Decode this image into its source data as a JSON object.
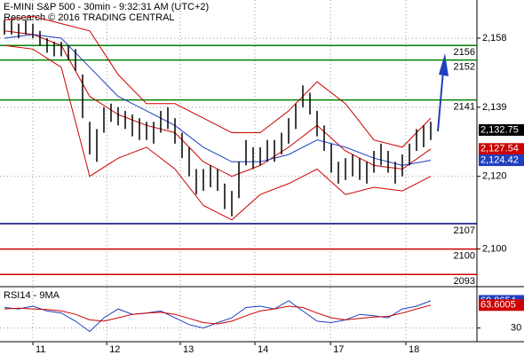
{
  "chart_data": {
    "type": "ohlc",
    "title": "E-MINI S&P 500 - 30min - 9:32:31 AM (UTC+2)",
    "subtitle": "Research © 2016 TRADING CENTRAL",
    "xlim": [
      -0.625,
      66.5
    ],
    "xticks": [
      {
        "value": 4,
        "label": "11"
      },
      {
        "value": 14.4,
        "label": "12"
      },
      {
        "value": 24.75,
        "label": "13"
      },
      {
        "value": 35.25,
        "label": "14"
      },
      {
        "value": 45.9,
        "label": "17"
      },
      {
        "value": 56.5,
        "label": "18"
      }
    ],
    "ylim": [
      2089.9,
      2168.5
    ],
    "yticks": [
      {
        "value": 2158,
        "label": "2,158"
      },
      {
        "value": 2139,
        "label": "2,139"
      },
      {
        "value": 2120,
        "label": "2,120"
      },
      {
        "value": 2100,
        "label": "2,100"
      }
    ],
    "grid": true,
    "high": [
      2163,
      2163,
      2162,
      2163,
      2162,
      2160,
      2158,
      2157,
      2157,
      2156,
      2155,
      2148,
      2135,
      2133,
      2139,
      2140,
      2139,
      2138,
      2137,
      2136,
      2135,
      2135,
      2138,
      2139,
      2136,
      2132,
      2128,
      2122,
      2122,
      2123,
      2122,
      2118,
      2116,
      2124,
      2130,
      2128,
      2128,
      2130,
      2130,
      2132,
      2136,
      2140,
      2145,
      2143,
      2138,
      2134,
      2129,
      2124,
      2125,
      2126,
      2125,
      2124,
      2127,
      2129,
      2127,
      2124,
      2126,
      2129,
      2133,
      2134,
      2135
    ],
    "low": [
      2159,
      2159,
      2158,
      2159,
      2158,
      2156,
      2154,
      2153,
      2153,
      2152,
      2149,
      2136,
      2126,
      2124,
      2132,
      2135,
      2134,
      2133,
      2131,
      2130,
      2130,
      2129,
      2132,
      2133,
      2129,
      2125,
      2120,
      2115,
      2116,
      2117,
      2116,
      2111,
      2109,
      2114,
      2123,
      2122,
      2123,
      2124,
      2124,
      2126,
      2129,
      2133,
      2139,
      2137,
      2131,
      2127,
      2121,
      2118,
      2119,
      2120,
      2119,
      2118,
      2121,
      2123,
      2121,
      2118,
      2120,
      2123,
      2127,
      2128,
      2130
    ],
    "bands": {
      "x": [
        0,
        4,
        8,
        12,
        16,
        20,
        24,
        28,
        32,
        36,
        40,
        44,
        48,
        52,
        56,
        60
      ],
      "series": [
        {
          "color": "#cc0000",
          "values": [
            2163,
            2164,
            2162,
            2160,
            2148,
            2140,
            2140,
            2136,
            2132,
            2132,
            2138,
            2146,
            2140,
            2130,
            2128,
            2136
          ]
        },
        {
          "color": "#cc0000",
          "values": [
            2156,
            2155,
            2150,
            2120,
            2125,
            2128,
            2122,
            2112,
            2108,
            2115,
            2118,
            2122,
            2115,
            2117,
            2116,
            2120
          ]
        },
        {
          "color": "#cc0000",
          "values": [
            2160,
            2159,
            2156,
            2142,
            2137,
            2134,
            2132,
            2124,
            2120,
            2123,
            2128,
            2134,
            2127,
            2123,
            2122,
            2127.54
          ]
        },
        {
          "color": "#1f3fbf",
          "values": [
            2158,
            2159,
            2158,
            2150,
            2142,
            2138,
            2134,
            2128,
            2124,
            2124,
            2126,
            2130,
            2128,
            2125,
            2123,
            2124.42
          ]
        }
      ]
    },
    "levels": [
      {
        "value": 2156,
        "color": "#008000"
      },
      {
        "value": 2152,
        "color": "#008000"
      },
      {
        "value": 2141,
        "color": "#008000"
      },
      {
        "value": 2107,
        "color": "#000080"
      },
      {
        "value": 2100,
        "color": "#cc0000"
      },
      {
        "value": 2093,
        "color": "#cc0000"
      }
    ],
    "price_tags": [
      {
        "value": 2132.75,
        "label": "2,132.75",
        "color": "#000000"
      },
      {
        "value": 2127.54,
        "label": "2,127.54",
        "color": "#cc0000"
      },
      {
        "value": 2124.42,
        "label": "2,124.42",
        "color": "#1f3fbf"
      }
    ],
    "rsi": {
      "title": "RSI14 - 9MA",
      "ylim": [
        10,
        88
      ],
      "yticks": [
        30
      ],
      "x": [
        0,
        2,
        4,
        6,
        8,
        10,
        12,
        14,
        16,
        18,
        20,
        22,
        24,
        26,
        28,
        30,
        32,
        34,
        36,
        38,
        40,
        42,
        44,
        46,
        48,
        50,
        52,
        54,
        56,
        58,
        60
      ],
      "series": [
        {
          "color": "#1f3fbf",
          "values": [
            60,
            58,
            62,
            55,
            52,
            40,
            25,
            45,
            58,
            50,
            52,
            55,
            45,
            35,
            30,
            38,
            45,
            60,
            62,
            58,
            70,
            55,
            40,
            38,
            42,
            50,
            48,
            45,
            58,
            62,
            69.8654
          ]
        },
        {
          "color": "#cc0000",
          "values": [
            58,
            59,
            58,
            57,
            55,
            50,
            42,
            40,
            45,
            50,
            52,
            53,
            50,
            44,
            38,
            36,
            40,
            48,
            55,
            58,
            62,
            60,
            52,
            45,
            42,
            44,
            46,
            47,
            52,
            58,
            63.6005
          ]
        }
      ],
      "tags": [
        {
          "value": 69.8654,
          "color": "#1f3fbf"
        },
        {
          "value": 63.6005,
          "color": "#cc0000"
        }
      ]
    }
  }
}
